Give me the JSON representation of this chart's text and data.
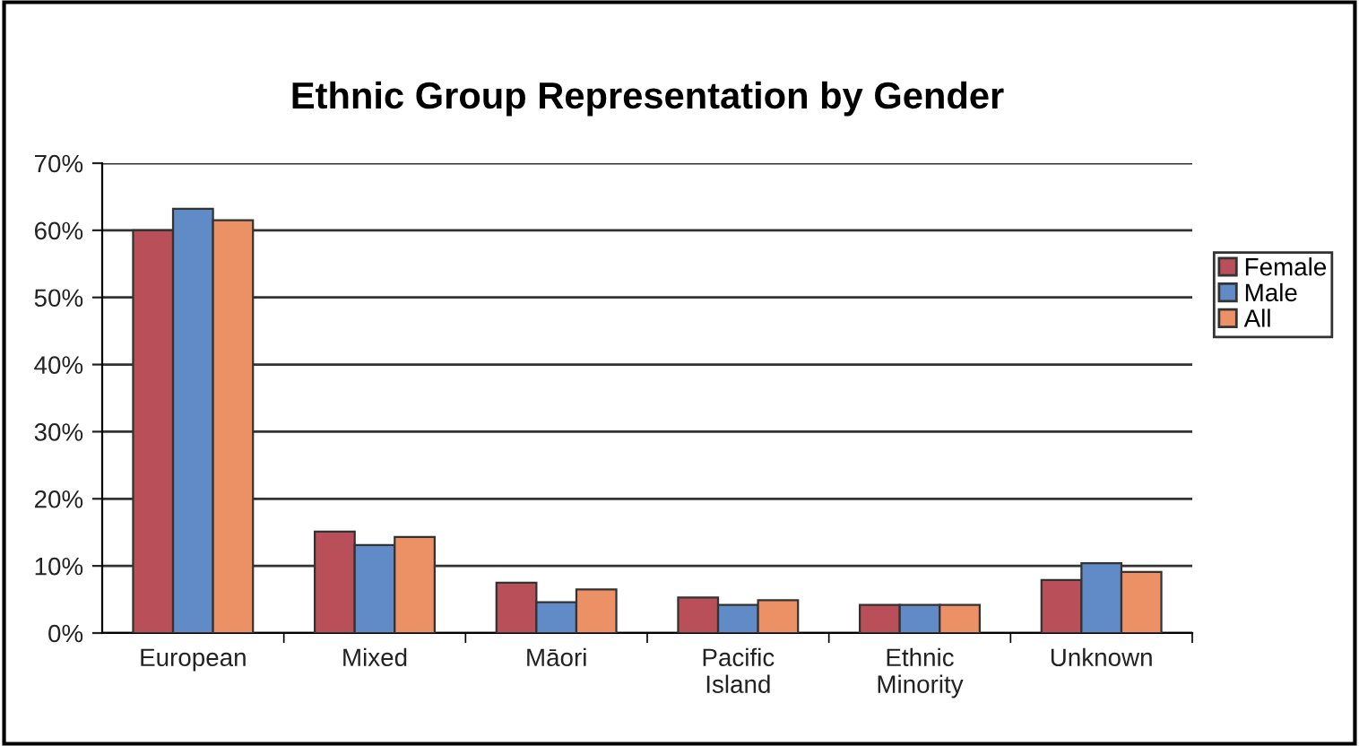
{
  "chart_data": {
    "type": "bar",
    "title": "Ethnic Group Representation by Gender",
    "categories": [
      "European",
      "Mixed",
      "Māori",
      "Pacific\nIsland",
      "Ethnic\nMinority",
      "Unknown"
    ],
    "series": [
      {
        "name": "Female",
        "color": "#b94f59",
        "values": [
          60.0,
          15.1,
          7.5,
          5.3,
          4.2,
          7.9
        ]
      },
      {
        "name": "Male",
        "color": "#608bc6",
        "values": [
          63.2,
          13.1,
          4.6,
          4.2,
          4.2,
          10.4
        ]
      },
      {
        "name": "All",
        "color": "#ec9066",
        "values": [
          61.5,
          14.3,
          6.5,
          4.9,
          4.2,
          9.1
        ]
      }
    ],
    "ylim": [
      0,
      70
    ],
    "yticks": [
      {
        "value": 0,
        "label": "0%"
      },
      {
        "value": 10,
        "label": "10%"
      },
      {
        "value": 20,
        "label": "20%"
      },
      {
        "value": 30,
        "label": "30%"
      },
      {
        "value": 40,
        "label": "40%"
      },
      {
        "value": 50,
        "label": "50%"
      },
      {
        "value": 60,
        "label": "60%"
      },
      {
        "value": 70,
        "label": "70%"
      }
    ],
    "grid": "y",
    "legend": "right"
  }
}
